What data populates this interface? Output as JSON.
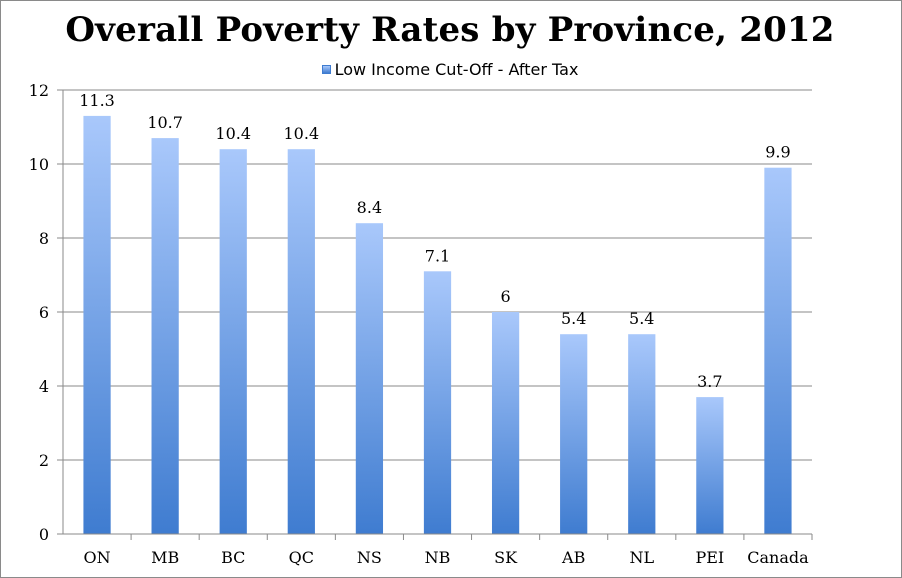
{
  "chart_data": {
    "type": "bar",
    "title": "Overall Poverty Rates by Province, 2012",
    "xlabel": "",
    "ylabel": "",
    "categories": [
      "ON",
      "MB",
      "BC",
      "QC",
      "NS",
      "NB",
      "SK",
      "AB",
      "NL",
      "PEI",
      "Canada"
    ],
    "series": [
      {
        "name": "Low Income Cut-Off - After Tax",
        "values": [
          11.3,
          10.7,
          10.4,
          10.4,
          8.4,
          7.1,
          6,
          5.4,
          5.4,
          3.7,
          9.9
        ],
        "labels": [
          "11.3",
          "10.7",
          "10.4",
          "10.4",
          "8.4",
          "7.1",
          "6",
          "5.4",
          "5.4",
          "3.7",
          "9.9"
        ]
      }
    ],
    "ylim": [
      0,
      12
    ],
    "yticks": [
      0,
      2,
      4,
      6,
      8,
      10,
      12
    ],
    "grid": true,
    "legend_position": "top-center",
    "colors": {
      "bar_top": "#a9c8fb",
      "bar_bottom": "#3f7cd0",
      "grid": "#8a8a8a"
    }
  }
}
